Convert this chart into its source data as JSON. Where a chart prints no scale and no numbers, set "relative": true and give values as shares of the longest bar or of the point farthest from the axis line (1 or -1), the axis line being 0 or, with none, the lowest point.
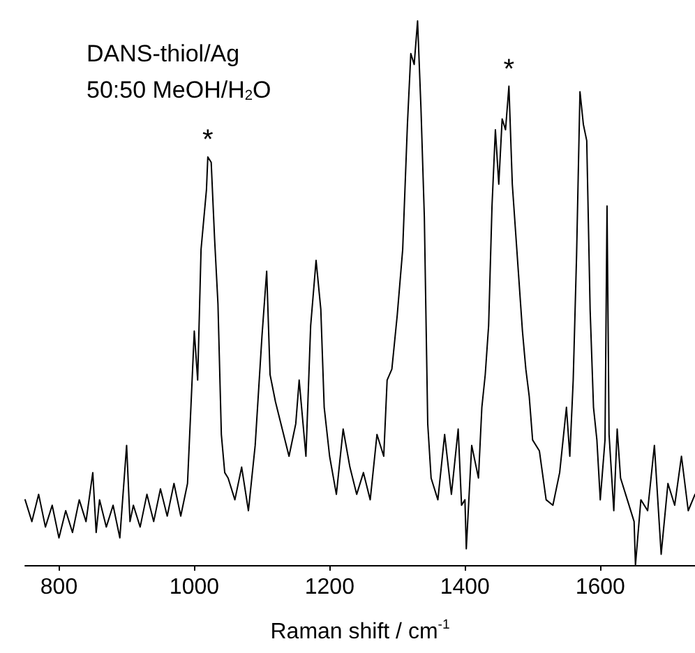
{
  "chart_data": {
    "type": "line",
    "relative": true,
    "xlabel": "Raman shift / cm$^{-1}$",
    "xlim": [
      750,
      1740
    ],
    "xticks": [
      800,
      1000,
      1200,
      1400,
      1600
    ],
    "annotations": [
      "DANS-thiol/Ag",
      "50:50 MeOH/H$_{2}$O",
      {
        "text": "*",
        "x": 1020,
        "y": 0.75
      },
      {
        "text": "*",
        "x": 1465,
        "y": 0.88
      }
    ],
    "marker": "none",
    "line_style": "solid",
    "grid": false,
    "series": [
      {
        "color": "#000000",
        "x": [
          750,
          760,
          770,
          780,
          790,
          800,
          810,
          820,
          830,
          840,
          850,
          855,
          860,
          870,
          880,
          890,
          900,
          905,
          910,
          920,
          930,
          940,
          950,
          960,
          970,
          980,
          990,
          1000,
          1005,
          1010,
          1018,
          1020,
          1025,
          1030,
          1035,
          1040,
          1045,
          1050,
          1060,
          1070,
          1080,
          1090,
          1100,
          1107,
          1112,
          1120,
          1130,
          1140,
          1150,
          1155,
          1165,
          1172,
          1180,
          1187,
          1192,
          1200,
          1210,
          1220,
          1230,
          1240,
          1250,
          1260,
          1270,
          1280,
          1285,
          1292,
          1300,
          1308,
          1315,
          1320,
          1325,
          1330,
          1335,
          1340,
          1345,
          1350,
          1360,
          1370,
          1380,
          1390,
          1395,
          1400,
          1402,
          1410,
          1420,
          1425,
          1430,
          1435,
          1440,
          1445,
          1450,
          1455,
          1460,
          1465,
          1470,
          1475,
          1480,
          1485,
          1490,
          1495,
          1500,
          1510,
          1520,
          1530,
          1540,
          1550,
          1555,
          1560,
          1565,
          1570,
          1575,
          1580,
          1585,
          1590,
          1595,
          1600,
          1607,
          1610,
          1613,
          1620,
          1625,
          1630,
          1640,
          1650,
          1652,
          1660,
          1670,
          1680,
          1690,
          1700,
          1710,
          1720,
          1730,
          1740
        ],
        "values": [
          0.12,
          0.08,
          0.13,
          0.07,
          0.11,
          0.05,
          0.1,
          0.06,
          0.12,
          0.08,
          0.17,
          0.06,
          0.12,
          0.07,
          0.11,
          0.05,
          0.22,
          0.08,
          0.11,
          0.07,
          0.13,
          0.08,
          0.14,
          0.09,
          0.15,
          0.09,
          0.15,
          0.43,
          0.34,
          0.58,
          0.69,
          0.75,
          0.74,
          0.6,
          0.48,
          0.24,
          0.17,
          0.16,
          0.12,
          0.18,
          0.1,
          0.22,
          0.42,
          0.54,
          0.35,
          0.3,
          0.25,
          0.2,
          0.26,
          0.34,
          0.2,
          0.44,
          0.56,
          0.47,
          0.29,
          0.2,
          0.13,
          0.25,
          0.18,
          0.13,
          0.17,
          0.12,
          0.24,
          0.2,
          0.34,
          0.36,
          0.46,
          0.58,
          0.81,
          0.94,
          0.92,
          1.0,
          0.84,
          0.64,
          0.26,
          0.16,
          0.12,
          0.24,
          0.13,
          0.25,
          0.11,
          0.12,
          0.03,
          0.22,
          0.16,
          0.29,
          0.35,
          0.44,
          0.66,
          0.8,
          0.7,
          0.82,
          0.8,
          0.88,
          0.7,
          0.61,
          0.52,
          0.43,
          0.36,
          0.31,
          0.23,
          0.21,
          0.12,
          0.11,
          0.17,
          0.29,
          0.2,
          0.34,
          0.57,
          0.87,
          0.81,
          0.78,
          0.47,
          0.29,
          0.23,
          0.12,
          0.23,
          0.66,
          0.24,
          0.1,
          0.25,
          0.16,
          0.12,
          0.08,
          0.0,
          0.12,
          0.1,
          0.22,
          0.02,
          0.15,
          0.11,
          0.2,
          0.1,
          0.13
        ]
      }
    ]
  }
}
